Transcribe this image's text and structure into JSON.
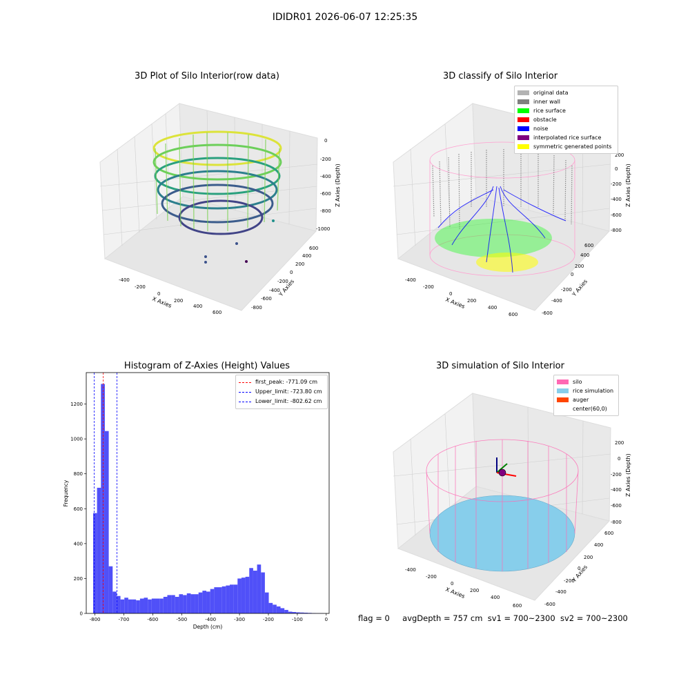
{
  "suptitle": "IDIDR01 2026-06-07 12:25:35",
  "panels": {
    "raw": {
      "title": "3D Plot of Silo Interior(row data)",
      "xlabel": "X Axies",
      "ylabel": "Y Axies",
      "zlabel": "Z Axies (Depth)",
      "xticks": [
        "-400",
        "-200",
        "0",
        "200",
        "400",
        "600"
      ],
      "yticks": [
        "600",
        "400",
        "200",
        "0",
        "-200",
        "-400",
        "-600",
        "-800"
      ],
      "zticks": [
        "0",
        "-200",
        "-400",
        "-600",
        "-800",
        "-1000"
      ]
    },
    "classify": {
      "title": "3D classify of Silo Interior",
      "xlabel": "X Axies",
      "ylabel": "Y Axies",
      "zlabel": "Z Axies (Depth)",
      "xticks": [
        "-400",
        "-200",
        "0",
        "200",
        "400",
        "600"
      ],
      "yticks": [
        "600",
        "400",
        "200",
        "0",
        "-200",
        "-400",
        "-600"
      ],
      "zticks": [
        "200",
        "0",
        "-200",
        "-400",
        "-600",
        "-800"
      ],
      "legend": [
        {
          "label": "original data",
          "color": "#b3b3b3"
        },
        {
          "label": "inner wall",
          "color": "#808080"
        },
        {
          "label": "rice surface",
          "color": "#00ff00"
        },
        {
          "label": "obstacle",
          "color": "#ff0000"
        },
        {
          "label": "noise",
          "color": "#0000ff"
        },
        {
          "label": "interpolated rice surface",
          "color": "#800080"
        },
        {
          "label": "symmetric generated points",
          "color": "#ffff00"
        }
      ]
    },
    "simulation": {
      "title": "3D simulation of Silo Interior",
      "xlabel": "X Axies",
      "ylabel": "Y Axies",
      "zlabel": "Z Axies (Depth)",
      "xticks": [
        "-400",
        "-200",
        "0",
        "200",
        "400",
        "600"
      ],
      "yticks": [
        "600",
        "400",
        "200",
        "0",
        "-200",
        "-400",
        "-600"
      ],
      "zticks": [
        "200",
        "0",
        "-200",
        "-400",
        "-600",
        "-800"
      ],
      "legend": [
        {
          "label": "silo",
          "color": "#ff69b4"
        },
        {
          "label": "rice simulation",
          "color": "#87ceeb"
        },
        {
          "label": "auger",
          "color": "#ff4500"
        },
        {
          "label": "center(60,0)",
          "color": ""
        }
      ]
    }
  },
  "status": {
    "flag": "flag = 0",
    "avg": "avgDepth = 757 cm",
    "sv1": "sv1 = 700~2300",
    "sv2": "sv2 = 700~2300"
  },
  "chart_data": {
    "type": "bar",
    "title": "Histogram of Z-Axies (Height) Values",
    "xlabel": "Depth (cm)",
    "ylabel": "Frequency",
    "xlim": [
      -830,
      10
    ],
    "ylim": [
      0,
      1380
    ],
    "xticks": [
      -800,
      -700,
      -600,
      -500,
      -400,
      -300,
      -200,
      -100,
      0
    ],
    "yticks": [
      0,
      200,
      400,
      600,
      800,
      1000,
      1200
    ],
    "bar_color": "#5050f8",
    "bin_width": 13.5,
    "bin_starts": [
      -806.2,
      -792.7,
      -779.2,
      -765.7,
      -752.2,
      -738.7,
      -725.2,
      -711.7,
      -698.2,
      -684.7,
      -671.2,
      -657.7,
      -644.2,
      -630.7,
      -617.2,
      -603.7,
      -590.2,
      -576.7,
      -563.2,
      -549.7,
      -536.2,
      -522.7,
      -509.2,
      -495.7,
      -482.2,
      -468.7,
      -455.2,
      -441.7,
      -428.2,
      -414.7,
      -401.2,
      -387.7,
      -374.2,
      -360.7,
      -347.2,
      -333.7,
      -320.2,
      -306.7,
      -293.2,
      -279.7,
      -266.2,
      -252.7,
      -239.2,
      -225.7,
      -212.2,
      -198.7,
      -185.2,
      -171.7,
      -158.2,
      -144.7,
      -131.2,
      -117.7,
      -104.2,
      -90.7,
      -77.2,
      -63.7,
      -50.2,
      -36.7,
      -23.2
    ],
    "values": [
      575,
      720,
      1315,
      1045,
      270,
      125,
      100,
      80,
      90,
      80,
      80,
      75,
      85,
      90,
      80,
      85,
      85,
      85,
      95,
      105,
      105,
      95,
      110,
      105,
      115,
      110,
      110,
      120,
      130,
      125,
      140,
      150,
      150,
      155,
      160,
      165,
      165,
      200,
      205,
      210,
      260,
      245,
      280,
      235,
      120,
      60,
      50,
      40,
      30,
      20,
      10,
      8,
      6,
      5,
      4,
      3,
      2,
      1,
      1
    ],
    "vlines": [
      {
        "label": "first_peak: -771.09 cm",
        "x": -771.09,
        "color": "#ff0000"
      },
      {
        "label": "Upper_limit: -723.80 cm",
        "x": -723.8,
        "color": "#0000ff"
      },
      {
        "label": "Lower_limit: -802.62 cm",
        "x": -802.62,
        "color": "#0000ff"
      }
    ]
  }
}
